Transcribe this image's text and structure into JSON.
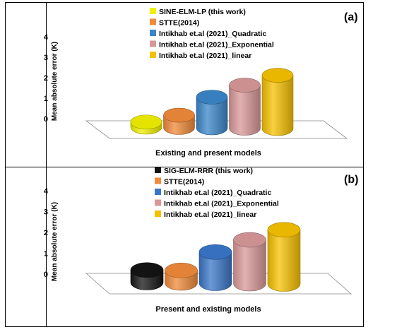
{
  "chart_data": [
    {
      "type": "bar",
      "panel_label": "(a)",
      "xlabel": "Existing and present models",
      "ylabel": "Mean absolute error (K)",
      "ylim": [
        0,
        4
      ],
      "yticks": [
        "0",
        "1",
        "2",
        "3",
        "4"
      ],
      "legend_position": "top",
      "grid": false,
      "series": [
        {
          "name": "SINE-ELM-LP (this work)",
          "value": 0.25,
          "color": "#f0f000"
        },
        {
          "name": "STTE(2014)",
          "value": 0.6,
          "color": "#ef8a3a"
        },
        {
          "name": "Intikhab et.al (2021)_Quadratic",
          "value": 1.5,
          "color": "#3a86c8"
        },
        {
          "name": "Intikhab et.al (2021)_Exponential",
          "value": 2.1,
          "color": "#d89898"
        },
        {
          "name": "Intikhab et.al (2021)_linear",
          "value": 2.6,
          "color": "#f5c000"
        }
      ]
    },
    {
      "type": "bar",
      "panel_label": "(b)",
      "xlabel": "Present and existing models",
      "ylabel": "Mean absolute error (K)",
      "ylim": [
        0,
        4
      ],
      "yticks": [
        "0",
        "1",
        "2",
        "3",
        "4"
      ],
      "legend_position": "top",
      "grid": false,
      "series": [
        {
          "name": "SIG-ELM-RRR (this work)",
          "value": 0.6,
          "color": "#141414"
        },
        {
          "name": "STTE(2014)",
          "value": 0.6,
          "color": "#ef8a3a"
        },
        {
          "name": "Intikhab et.al (2021)_Quadratic",
          "value": 1.5,
          "color": "#3a76c8"
        },
        {
          "name": "Intikhab et.al (2021)_Exponential",
          "value": 2.1,
          "color": "#d89898"
        },
        {
          "name": "Intikhab et.al (2021)_linear",
          "value": 2.6,
          "color": "#f5c000"
        }
      ]
    }
  ]
}
